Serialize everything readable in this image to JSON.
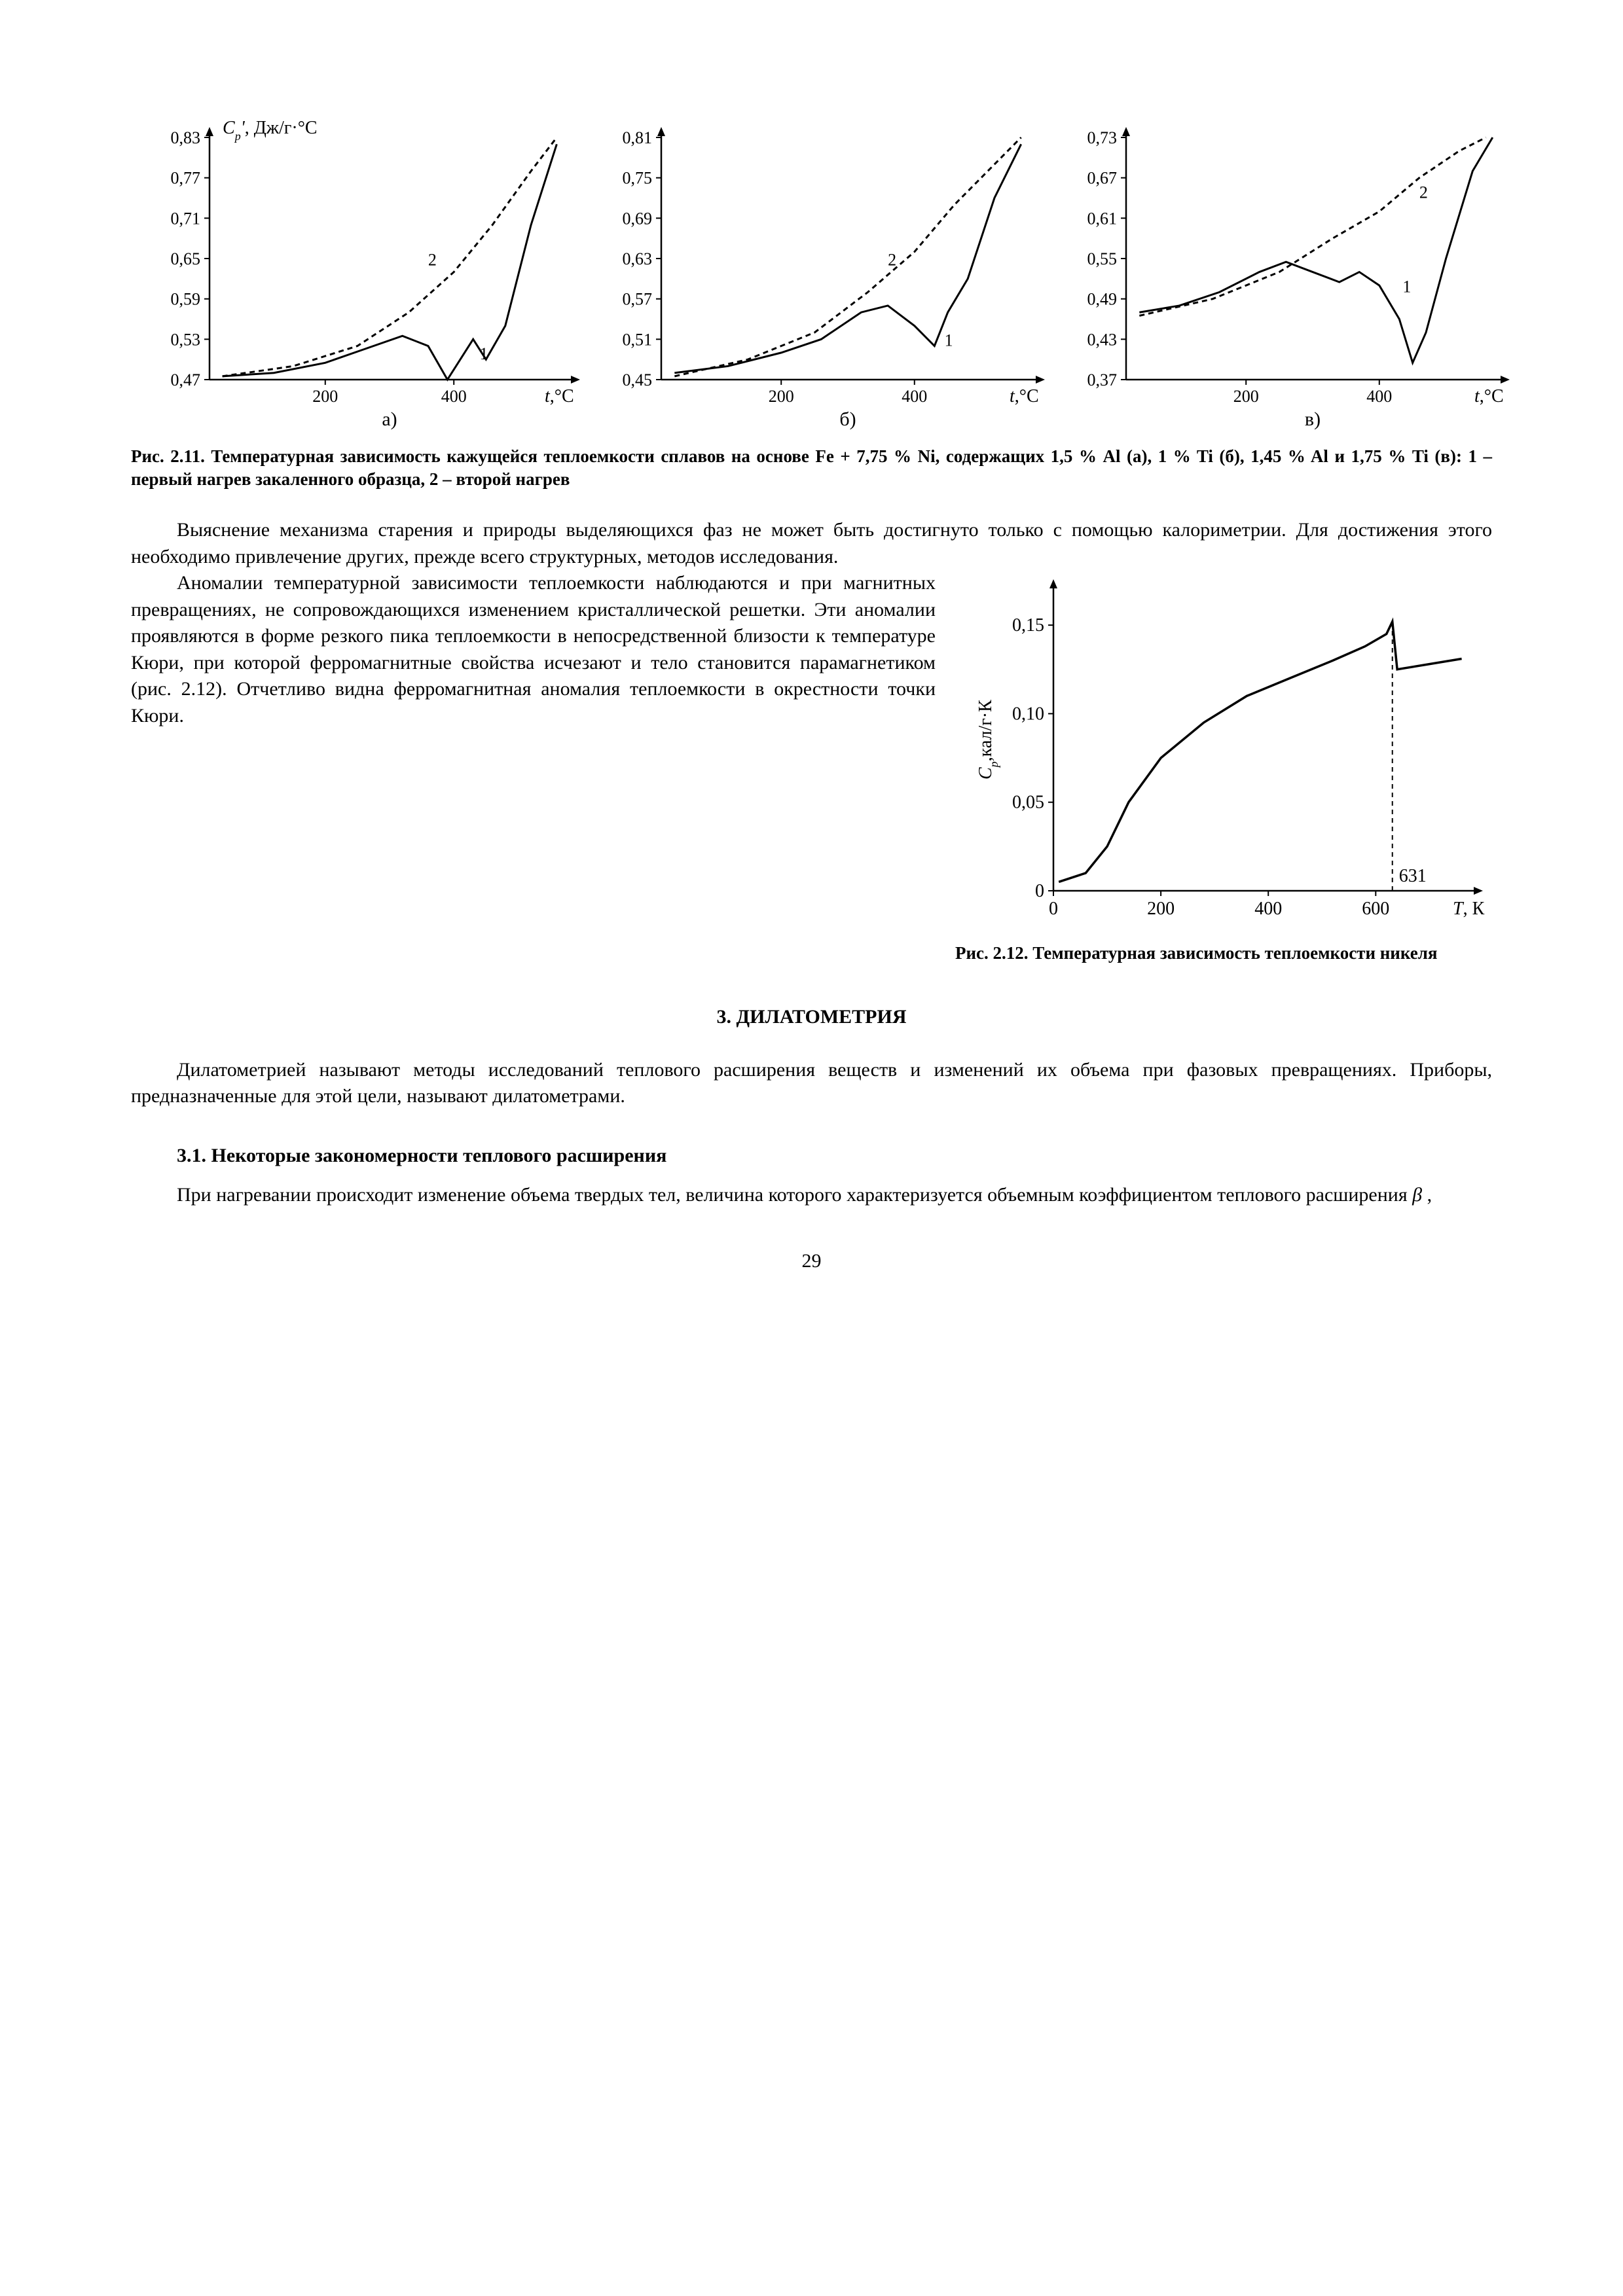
{
  "fig211": {
    "ylabel_html": "<tspan font-style='italic'>C<tspan baseline-shift='sub' font-size='18'>p</tspan>'</tspan>, Дж/г·°С",
    "xlabel_html": "<tspan font-style='italic'>t</tspan>,°С",
    "x_ticks": [
      200,
      400
    ],
    "panel_labels": [
      "а)",
      "б)",
      "в)"
    ],
    "panels": [
      {
        "y_ticks": [
          0.47,
          0.53,
          0.59,
          0.65,
          0.71,
          0.77,
          0.83
        ],
        "series": [
          {
            "label": "1",
            "dash": "none",
            "points": [
              [
                40,
                0.475
              ],
              [
                120,
                0.48
              ],
              [
                200,
                0.495
              ],
              [
                260,
                0.515
              ],
              [
                320,
                0.535
              ],
              [
                360,
                0.52
              ],
              [
                390,
                0.47
              ],
              [
                410,
                0.5
              ],
              [
                430,
                0.53
              ],
              [
                450,
                0.5
              ],
              [
                480,
                0.55
              ],
              [
                520,
                0.7
              ],
              [
                560,
                0.82
              ]
            ]
          },
          {
            "label": "2",
            "dash": "8,6",
            "points": [
              [
                40,
                0.475
              ],
              [
                150,
                0.49
              ],
              [
                250,
                0.52
              ],
              [
                330,
                0.57
              ],
              [
                400,
                0.63
              ],
              [
                460,
                0.7
              ],
              [
                520,
                0.78
              ],
              [
                560,
                0.83
              ]
            ]
          }
        ],
        "label_pos": {
          "1": [
            440,
            0.5
          ],
          "2": [
            360,
            0.64
          ]
        }
      },
      {
        "y_ticks": [
          0.45,
          0.51,
          0.57,
          0.63,
          0.69,
          0.75,
          0.81
        ],
        "series": [
          {
            "label": "1",
            "dash": "none",
            "points": [
              [
                40,
                0.46
              ],
              [
                120,
                0.47
              ],
              [
                200,
                0.49
              ],
              [
                260,
                0.51
              ],
              [
                320,
                0.55
              ],
              [
                360,
                0.56
              ],
              [
                400,
                0.53
              ],
              [
                430,
                0.5
              ],
              [
                450,
                0.55
              ],
              [
                480,
                0.6
              ],
              [
                520,
                0.72
              ],
              [
                560,
                0.8
              ]
            ]
          },
          {
            "label": "2",
            "dash": "8,6",
            "points": [
              [
                40,
                0.455
              ],
              [
                150,
                0.48
              ],
              [
                250,
                0.52
              ],
              [
                330,
                0.58
              ],
              [
                400,
                0.64
              ],
              [
                460,
                0.71
              ],
              [
                520,
                0.77
              ],
              [
                560,
                0.81
              ]
            ]
          }
        ],
        "label_pos": {
          "1": [
            445,
            0.5
          ],
          "2": [
            360,
            0.62
          ]
        }
      },
      {
        "y_ticks": [
          0.37,
          0.43,
          0.49,
          0.55,
          0.61,
          0.67,
          0.73
        ],
        "series": [
          {
            "label": "1",
            "dash": "none",
            "points": [
              [
                40,
                0.47
              ],
              [
                100,
                0.48
              ],
              [
                160,
                0.5
              ],
              [
                220,
                0.53
              ],
              [
                260,
                0.545
              ],
              [
                300,
                0.53
              ],
              [
                340,
                0.515
              ],
              [
                370,
                0.53
              ],
              [
                400,
                0.51
              ],
              [
                430,
                0.46
              ],
              [
                450,
                0.395
              ],
              [
                470,
                0.44
              ],
              [
                500,
                0.55
              ],
              [
                540,
                0.68
              ],
              [
                570,
                0.73
              ]
            ]
          },
          {
            "label": "2",
            "dash": "8,6",
            "points": [
              [
                40,
                0.465
              ],
              [
                150,
                0.49
              ],
              [
                250,
                0.53
              ],
              [
                330,
                0.58
              ],
              [
                400,
                0.62
              ],
              [
                460,
                0.67
              ],
              [
                520,
                0.71
              ],
              [
                560,
                0.73
              ]
            ]
          }
        ],
        "label_pos": {
          "1": [
            435,
            0.5
          ],
          "2": [
            460,
            0.64
          ]
        }
      }
    ],
    "caption": "Рис. 2.11. Температурная зависимость кажущейся теплоемкости сплавов на основе Fe + 7,75 % Ni, содержащих 1,5 % Al (а), 1 % Ti (б), 1,45 % Al и 1,75 % Ti (в): 1 – первый нагрев закаленного образца, 2 – второй нагрев"
  },
  "para1": "Выяснение механизма старения и природы выделяющихся фаз не может быть достигнуто только с помощью калориметрии. Для достижения этого необходимо привлечение других, прежде всего структурных, методов исследования.",
  "para2": "Аномалии температурной зависимости теплоемкости наблюдаются и при магнитных превращениях, не сопровождающихся изменением кристаллической решетки. Эти аномалии проявляются в форме резкого пика теплоемкости в непосредственной близости к температуре Кюри, при которой ферромагнитные свойства исчезают и тело становится парамагнетиком (рис. 2.12). Отчетливо видна ферромагнитная аномалия теплоемкости в окрестности точки Кюри.",
  "fig212": {
    "ylabel": "Cp, кал/г·К",
    "xlabel_html": "<tspan font-style='italic'>T</tspan>, К",
    "x_ticks": [
      0,
      200,
      400,
      600
    ],
    "y_ticks": [
      0,
      0.05,
      0.1,
      0.15
    ],
    "curie": 631,
    "series": [
      [
        10,
        0.005
      ],
      [
        60,
        0.01
      ],
      [
        100,
        0.025
      ],
      [
        140,
        0.05
      ],
      [
        200,
        0.075
      ],
      [
        280,
        0.095
      ],
      [
        360,
        0.11
      ],
      [
        440,
        0.12
      ],
      [
        520,
        0.13
      ],
      [
        580,
        0.138
      ],
      [
        620,
        0.145
      ],
      [
        631,
        0.152
      ],
      [
        640,
        0.125
      ],
      [
        700,
        0.128
      ],
      [
        760,
        0.131
      ]
    ],
    "caption": "Рис. 2.12. Температурная зависимость теплоемкости никеля"
  },
  "section3": "3. ДИЛАТОМЕТРИЯ",
  "para3": "Дилатометрией называют методы исследований теплового расширения веществ и изменений их объема при фазовых превращениях. Приборы, предназначенные для этой цели, называют дилатометрами.",
  "subsection31": "3.1. Некоторые закономерности теплового расширения",
  "para4_html": "При нагревании происходит изменение объема твердых тел, величина которого характеризуется объемным коэффициентом теплового расширения <span style='font-style:italic'>β</span> ,",
  "page": "29"
}
